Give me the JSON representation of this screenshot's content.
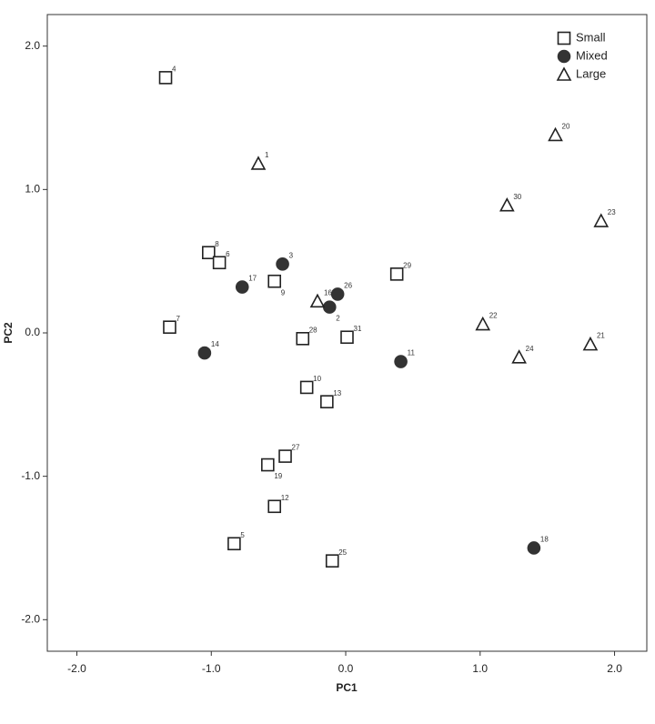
{
  "chart_data": {
    "type": "scatter",
    "x_label": "PC1",
    "y_label": "PC2",
    "xlim": [
      -2.22,
      2.24
    ],
    "ylim": [
      -2.22,
      2.22
    ],
    "xticks": [
      {
        "value": -2,
        "label": "-2.0"
      },
      {
        "value": -1,
        "label": "-1.0"
      },
      {
        "value": 0,
        "label": "0.0"
      },
      {
        "value": 1,
        "label": "1.0"
      },
      {
        "value": 2,
        "label": "2.0"
      }
    ],
    "yticks": [
      {
        "value": -2,
        "label": "-2.0"
      },
      {
        "value": -1,
        "label": "-1.0"
      },
      {
        "value": 0,
        "label": "0.0"
      },
      {
        "value": 1,
        "label": "1.0"
      },
      {
        "value": 2,
        "label": "2.0"
      }
    ],
    "grid": false,
    "legend": "upper right",
    "series": [
      {
        "name": "Small",
        "marker": "square",
        "filled": false,
        "color": "#222222",
        "labels": [
          "4",
          "8",
          "6",
          "9",
          "7",
          "28",
          "31",
          "29",
          "10",
          "13",
          "27",
          "19",
          "12",
          "5",
          "25"
        ],
        "x": [
          -1.34,
          -1.02,
          -0.94,
          -0.53,
          -1.31,
          -0.32,
          0.01,
          0.38,
          -0.29,
          -0.14,
          -0.45,
          -0.58,
          -0.53,
          -0.83,
          -0.1
        ],
        "values": [
          1.78,
          0.56,
          0.49,
          0.36,
          0.04,
          -0.04,
          -0.03,
          0.41,
          -0.38,
          -0.48,
          -0.86,
          -0.92,
          -1.21,
          -1.47,
          -1.59
        ]
      },
      {
        "name": "Mixed",
        "marker": "circle",
        "filled": true,
        "color": "#333333",
        "labels": [
          "3",
          "17",
          "26",
          "2",
          "14",
          "11",
          "18"
        ],
        "x": [
          -0.47,
          -0.77,
          -0.06,
          -0.12,
          -1.05,
          0.41,
          1.4
        ],
        "values": [
          0.48,
          0.32,
          0.27,
          0.18,
          -0.14,
          -0.2,
          -1.5
        ]
      },
      {
        "name": "Large",
        "marker": "triangle",
        "filled": false,
        "color": "#222222",
        "labels": [
          "1",
          "16",
          "20",
          "30",
          "23",
          "22",
          "21",
          "24"
        ],
        "x": [
          -0.65,
          -0.21,
          1.56,
          1.2,
          1.9,
          1.02,
          1.82,
          1.29
        ],
        "values": [
          1.18,
          0.22,
          1.38,
          0.89,
          0.78,
          0.06,
          -0.08,
          -0.17
        ]
      }
    ]
  }
}
